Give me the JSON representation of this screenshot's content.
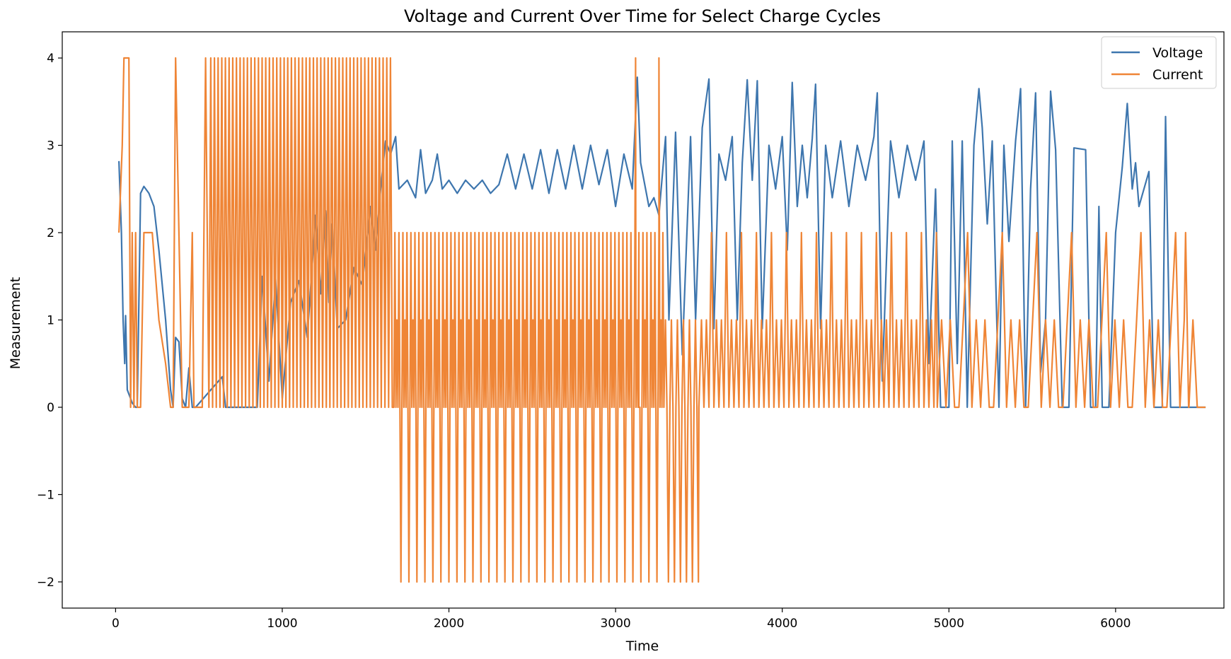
{
  "chart_data": {
    "type": "line",
    "title": "Voltage and Current Over Time for Select Charge Cycles",
    "xlabel": "Time",
    "ylabel": "Measurement",
    "xlim": [
      -320,
      6650
    ],
    "ylim": [
      -2.3,
      4.3
    ],
    "xticks": [
      0,
      1000,
      2000,
      3000,
      4000,
      5000,
      6000
    ],
    "yticks": [
      -2,
      -1,
      0,
      1,
      2,
      3,
      4
    ],
    "ytick_labels": [
      "−2",
      "−1",
      "0",
      "1",
      "2",
      "3",
      "4"
    ],
    "grid": false,
    "legend_position": "top-right",
    "series": [
      {
        "name": "Voltage",
        "color": "#3e76ae",
        "points": [
          [
            20,
            2.82
          ],
          [
            35,
            2.0
          ],
          [
            45,
            1.0
          ],
          [
            55,
            0.5
          ],
          [
            60,
            1.05
          ],
          [
            70,
            0.2
          ],
          [
            90,
            0.1
          ],
          [
            100,
            0.05
          ],
          [
            120,
            0.0
          ],
          [
            130,
            0.0
          ],
          [
            150,
            2.45
          ],
          [
            170,
            2.53
          ],
          [
            200,
            2.45
          ],
          [
            230,
            2.3
          ],
          [
            260,
            1.8
          ],
          [
            300,
            1.0
          ],
          [
            330,
            0.2
          ],
          [
            345,
            0.0
          ],
          [
            360,
            0.8
          ],
          [
            380,
            0.75
          ],
          [
            400,
            0.1
          ],
          [
            420,
            0.0
          ],
          [
            440,
            0.45
          ],
          [
            460,
            0.0
          ],
          [
            480,
            0.0
          ],
          [
            640,
            0.35
          ],
          [
            660,
            0.0
          ],
          [
            850,
            0.0
          ],
          [
            880,
            1.5
          ],
          [
            920,
            0.3
          ],
          [
            960,
            1.47
          ],
          [
            1000,
            0.1
          ],
          [
            1050,
            1.2
          ],
          [
            1100,
            1.45
          ],
          [
            1150,
            0.8
          ],
          [
            1200,
            2.2
          ],
          [
            1230,
            1.3
          ],
          [
            1260,
            2.25
          ],
          [
            1280,
            1.2
          ],
          [
            1300,
            2.1
          ],
          [
            1330,
            0.9
          ],
          [
            1380,
            1.0
          ],
          [
            1430,
            1.6
          ],
          [
            1480,
            1.4
          ],
          [
            1530,
            2.3
          ],
          [
            1560,
            1.8
          ],
          [
            1590,
            2.5
          ],
          [
            1620,
            3.05
          ],
          [
            1650,
            2.9
          ],
          [
            1680,
            3.1
          ],
          [
            1700,
            2.5
          ],
          [
            1750,
            2.6
          ],
          [
            1800,
            2.4
          ],
          [
            1830,
            2.95
          ],
          [
            1860,
            2.45
          ],
          [
            1900,
            2.6
          ],
          [
            1930,
            2.9
          ],
          [
            1960,
            2.5
          ],
          [
            2000,
            2.6
          ],
          [
            2050,
            2.45
          ],
          [
            2100,
            2.6
          ],
          [
            2150,
            2.5
          ],
          [
            2200,
            2.6
          ],
          [
            2250,
            2.45
          ],
          [
            2300,
            2.55
          ],
          [
            2350,
            2.9
          ],
          [
            2400,
            2.5
          ],
          [
            2450,
            2.9
          ],
          [
            2500,
            2.5
          ],
          [
            2550,
            2.95
          ],
          [
            2600,
            2.45
          ],
          [
            2650,
            2.95
          ],
          [
            2700,
            2.5
          ],
          [
            2750,
            3.0
          ],
          [
            2800,
            2.5
          ],
          [
            2850,
            3.0
          ],
          [
            2900,
            2.55
          ],
          [
            2950,
            2.95
          ],
          [
            3000,
            2.3
          ],
          [
            3050,
            2.9
          ],
          [
            3100,
            2.5
          ],
          [
            3130,
            3.78
          ],
          [
            3150,
            2.8
          ],
          [
            3200,
            2.3
          ],
          [
            3230,
            2.4
          ],
          [
            3260,
            2.2
          ],
          [
            3300,
            3.1
          ],
          [
            3320,
            1.0
          ],
          [
            3360,
            3.15
          ],
          [
            3400,
            0.6
          ],
          [
            3450,
            3.1
          ],
          [
            3480,
            1.0
          ],
          [
            3520,
            3.2
          ],
          [
            3560,
            3.76
          ],
          [
            3590,
            0.9
          ],
          [
            3620,
            2.9
          ],
          [
            3660,
            2.6
          ],
          [
            3700,
            3.1
          ],
          [
            3730,
            1.0
          ],
          [
            3760,
            2.8
          ],
          [
            3790,
            3.75
          ],
          [
            3820,
            2.6
          ],
          [
            3850,
            3.74
          ],
          [
            3880,
            0.9
          ],
          [
            3920,
            3.0
          ],
          [
            3960,
            2.5
          ],
          [
            4000,
            3.1
          ],
          [
            4030,
            1.8
          ],
          [
            4060,
            3.72
          ],
          [
            4090,
            2.3
          ],
          [
            4120,
            3.0
          ],
          [
            4150,
            2.4
          ],
          [
            4180,
            3.08
          ],
          [
            4200,
            3.7
          ],
          [
            4230,
            0.9
          ],
          [
            4260,
            3.0
          ],
          [
            4300,
            2.4
          ],
          [
            4350,
            3.05
          ],
          [
            4400,
            2.3
          ],
          [
            4450,
            3.0
          ],
          [
            4500,
            2.6
          ],
          [
            4550,
            3.1
          ],
          [
            4570,
            3.6
          ],
          [
            4600,
            0.3
          ],
          [
            4650,
            3.05
          ],
          [
            4700,
            2.4
          ],
          [
            4750,
            3.0
          ],
          [
            4800,
            2.6
          ],
          [
            4850,
            3.05
          ],
          [
            4880,
            0.5
          ],
          [
            4920,
            2.5
          ],
          [
            4950,
            0.0
          ],
          [
            5000,
            0.0
          ],
          [
            5020,
            3.05
          ],
          [
            5050,
            0.5
          ],
          [
            5080,
            3.05
          ],
          [
            5110,
            0.0
          ],
          [
            5150,
            3.0
          ],
          [
            5180,
            3.65
          ],
          [
            5200,
            3.2
          ],
          [
            5230,
            2.1
          ],
          [
            5260,
            3.05
          ],
          [
            5300,
            0.0
          ],
          [
            5330,
            3.0
          ],
          [
            5360,
            1.9
          ],
          [
            5400,
            3.05
          ],
          [
            5430,
            3.65
          ],
          [
            5460,
            0.0
          ],
          [
            5490,
            2.5
          ],
          [
            5520,
            3.6
          ],
          [
            5550,
            0.4
          ],
          [
            5580,
            1.0
          ],
          [
            5610,
            3.62
          ],
          [
            5640,
            2.95
          ],
          [
            5680,
            0.0
          ],
          [
            5720,
            0.0
          ],
          [
            5750,
            2.97
          ],
          [
            5820,
            2.95
          ],
          [
            5850,
            0.0
          ],
          [
            5880,
            0.0
          ],
          [
            5900,
            2.3
          ],
          [
            5920,
            0.0
          ],
          [
            5960,
            0.0
          ],
          [
            6000,
            2.0
          ],
          [
            6040,
            2.75
          ],
          [
            6070,
            3.48
          ],
          [
            6100,
            2.5
          ],
          [
            6120,
            2.8
          ],
          [
            6140,
            2.3
          ],
          [
            6200,
            2.7
          ],
          [
            6230,
            0.0
          ],
          [
            6280,
            0.0
          ],
          [
            6300,
            3.33
          ],
          [
            6330,
            0.0
          ],
          [
            6400,
            0.0
          ],
          [
            6450,
            0.0
          ],
          [
            6540,
            0.0
          ]
        ]
      },
      {
        "name": "Current",
        "color": "#ef8536",
        "points": [
          [
            20,
            2.0
          ],
          [
            40,
            3.0
          ],
          [
            50,
            4.0
          ],
          [
            80,
            4.0
          ],
          [
            90,
            0.0
          ],
          [
            100,
            2.0
          ],
          [
            110,
            0.0
          ],
          [
            120,
            2.0
          ],
          [
            130,
            0.0
          ],
          [
            150,
            0.0
          ],
          [
            170,
            2.0
          ],
          [
            220,
            2.0
          ],
          [
            260,
            1.0
          ],
          [
            300,
            0.5
          ],
          [
            330,
            0.0
          ],
          [
            345,
            0.0
          ],
          [
            360,
            4.0
          ],
          [
            380,
            2.0
          ],
          [
            400,
            0.0
          ],
          [
            440,
            0.0
          ],
          [
            460,
            2.0
          ],
          [
            470,
            0.0
          ],
          [
            520,
            0.0
          ],
          [
            540,
            4.0
          ],
          [
            560,
            0.0
          ]
        ],
        "segments": [
          {
            "from": 560,
            "to": 1670,
            "values": [
              0,
              4
            ],
            "step": 11
          },
          {
            "from": 1670,
            "to": 3290,
            "values": [
              0,
              2,
              0,
              1,
              0,
              2,
              0,
              -2
            ],
            "step": 6
          },
          {
            "from": 3290,
            "to": 3500,
            "values": [
              0,
              1,
              0,
              -2
            ],
            "step": 9
          },
          {
            "from": 3500,
            "to": 4930,
            "values": [
              0,
              1,
              0,
              1,
              0,
              2
            ],
            "step": 15
          },
          {
            "from": 4930,
            "to": 6540,
            "values": [
              0,
              1,
              0,
              1,
              0,
              0,
              1,
              2
            ],
            "step": 26
          }
        ],
        "extra_points": [
          [
            3120,
            4.0
          ],
          [
            3140,
            0.0
          ],
          [
            3260,
            4.0
          ],
          [
            3290,
            0.0
          ],
          [
            6420,
            2.0
          ],
          [
            6440,
            0.0
          ],
          [
            6540,
            0.0
          ]
        ]
      }
    ]
  }
}
